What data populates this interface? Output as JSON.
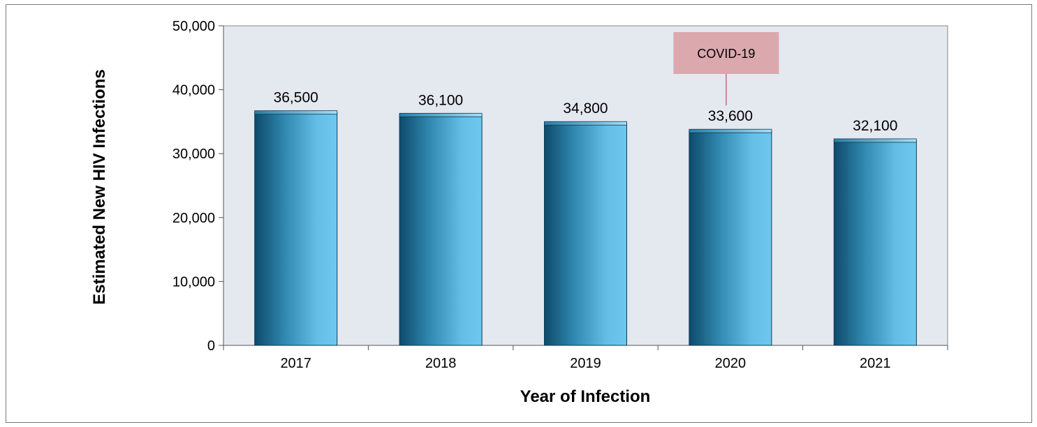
{
  "chart_data": {
    "type": "bar",
    "categories": [
      "2017",
      "2018",
      "2019",
      "2020",
      "2021"
    ],
    "values": [
      36500,
      36100,
      34800,
      33600,
      32100
    ],
    "data_labels": [
      "36,500",
      "36,100",
      "34,800",
      "33,600",
      "32,100"
    ],
    "xlabel": "Year of Infection",
    "ylabel": "Estimated New HIV Infections",
    "ylim": [
      0,
      50000
    ],
    "yticks": [
      0,
      10000,
      20000,
      30000,
      40000,
      50000
    ],
    "ytick_labels": [
      "0",
      "10,000",
      "20,000",
      "30,000",
      "40,000",
      "50,000"
    ],
    "grid": false,
    "legend": "none",
    "annotation": {
      "text": "COVID-19",
      "category": "2020"
    },
    "colors": {
      "plot_background": "#e4e8ef",
      "bar_dark": "#0d4a6a",
      "bar_mid": "#3f9fc8",
      "bar_light": "#6cc6ec",
      "annotation_fill": "#dba8ae",
      "annotation_line": "#c44a5a"
    }
  }
}
